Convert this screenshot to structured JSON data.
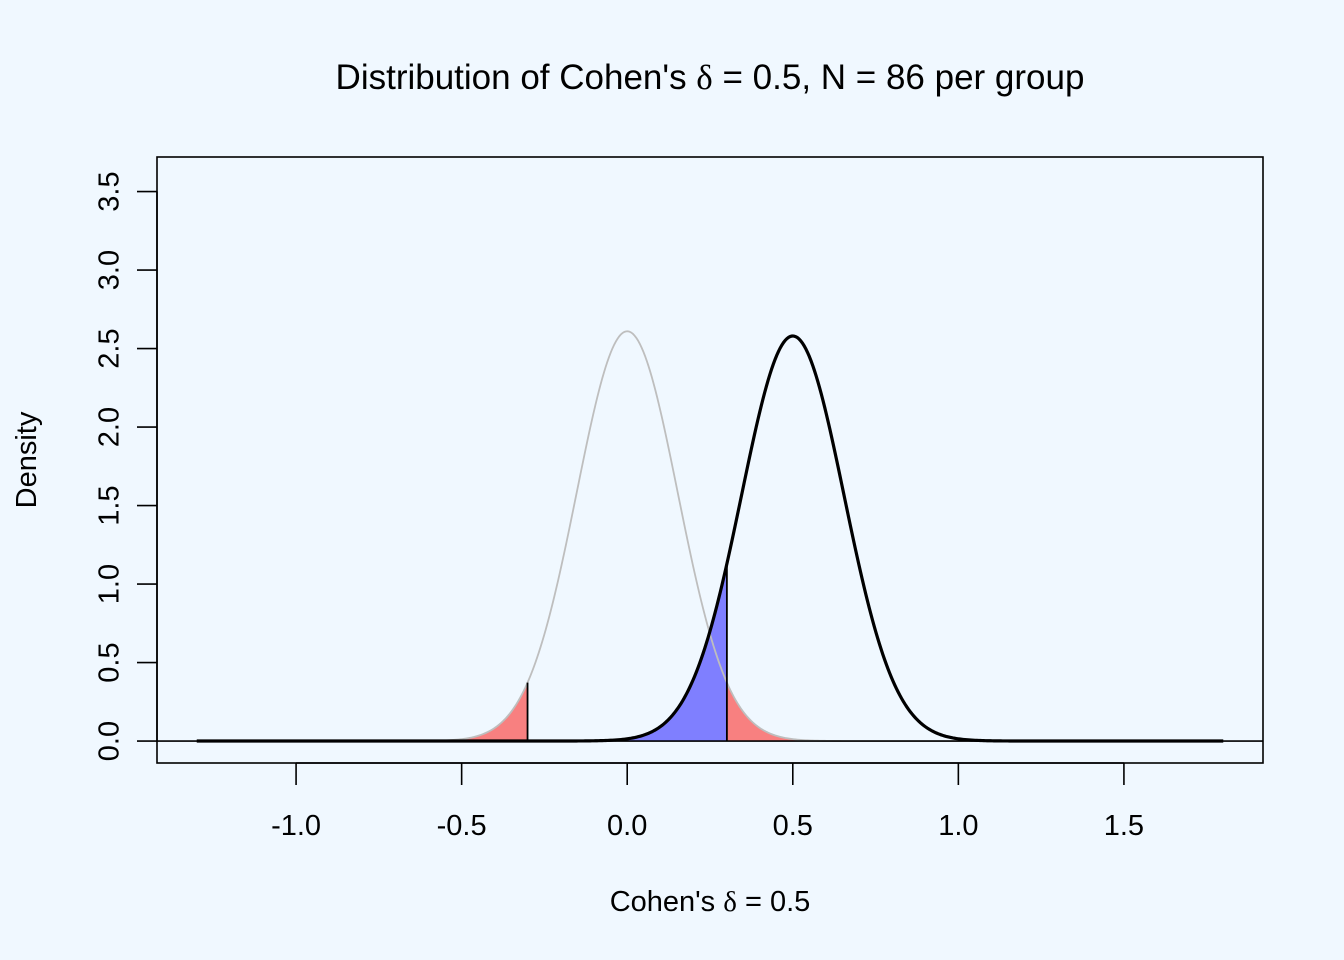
{
  "chart_data": {
    "type": "area",
    "title": {
      "prefix": "Distribution of Cohen's ",
      "symbol": "δ",
      "suffix": " = 0.5, N = 86 per group"
    },
    "xlabel": {
      "prefix": "Cohen's ",
      "symbol": "δ",
      "suffix": " = 0.5"
    },
    "ylabel": "Density",
    "xlim": [
      -1.42,
      1.92
    ],
    "ylim": [
      -0.14,
      3.72
    ],
    "x_ticks": [
      -1.0,
      -0.5,
      0.0,
      0.5,
      1.0,
      1.5
    ],
    "x_tick_labels": [
      "-1.0",
      "-0.5",
      "0.0",
      "0.5",
      "1.0",
      "1.5"
    ],
    "y_ticks": [
      0.0,
      0.5,
      1.0,
      1.5,
      2.0,
      2.5,
      3.0,
      3.5
    ],
    "y_tick_labels": [
      "0.0",
      "0.5",
      "1.0",
      "1.5",
      "2.0",
      "2.5",
      "3.0",
      "3.5"
    ],
    "curve_x_range": [
      -1.3,
      1.8
    ],
    "critical_values": [
      -0.301,
      0.301
    ],
    "series": [
      {
        "role": "null",
        "mean": 0.0,
        "sd": 0.1525,
        "peak_density": 2.61,
        "color": "#BEBEBE"
      },
      {
        "role": "alternative",
        "mean": 0.5,
        "sd": 0.1548,
        "peak_density": 2.58,
        "color": "#000000"
      }
    ],
    "shaded_regions": [
      {
        "role": "type-I-error-lower",
        "under": "null",
        "from": -1.3,
        "to": -0.301,
        "color": "#F88080"
      },
      {
        "role": "type-I-error-upper",
        "under": "null",
        "from": 0.301,
        "to": 1.8,
        "color": "#F88080"
      },
      {
        "role": "type-II-error",
        "under": "alternative",
        "from": -1.3,
        "to": 0.301,
        "color": "#7F7FFF"
      }
    ],
    "baseline_y": 0,
    "grid": false,
    "legend": "none",
    "background": "#F0F8FF"
  }
}
